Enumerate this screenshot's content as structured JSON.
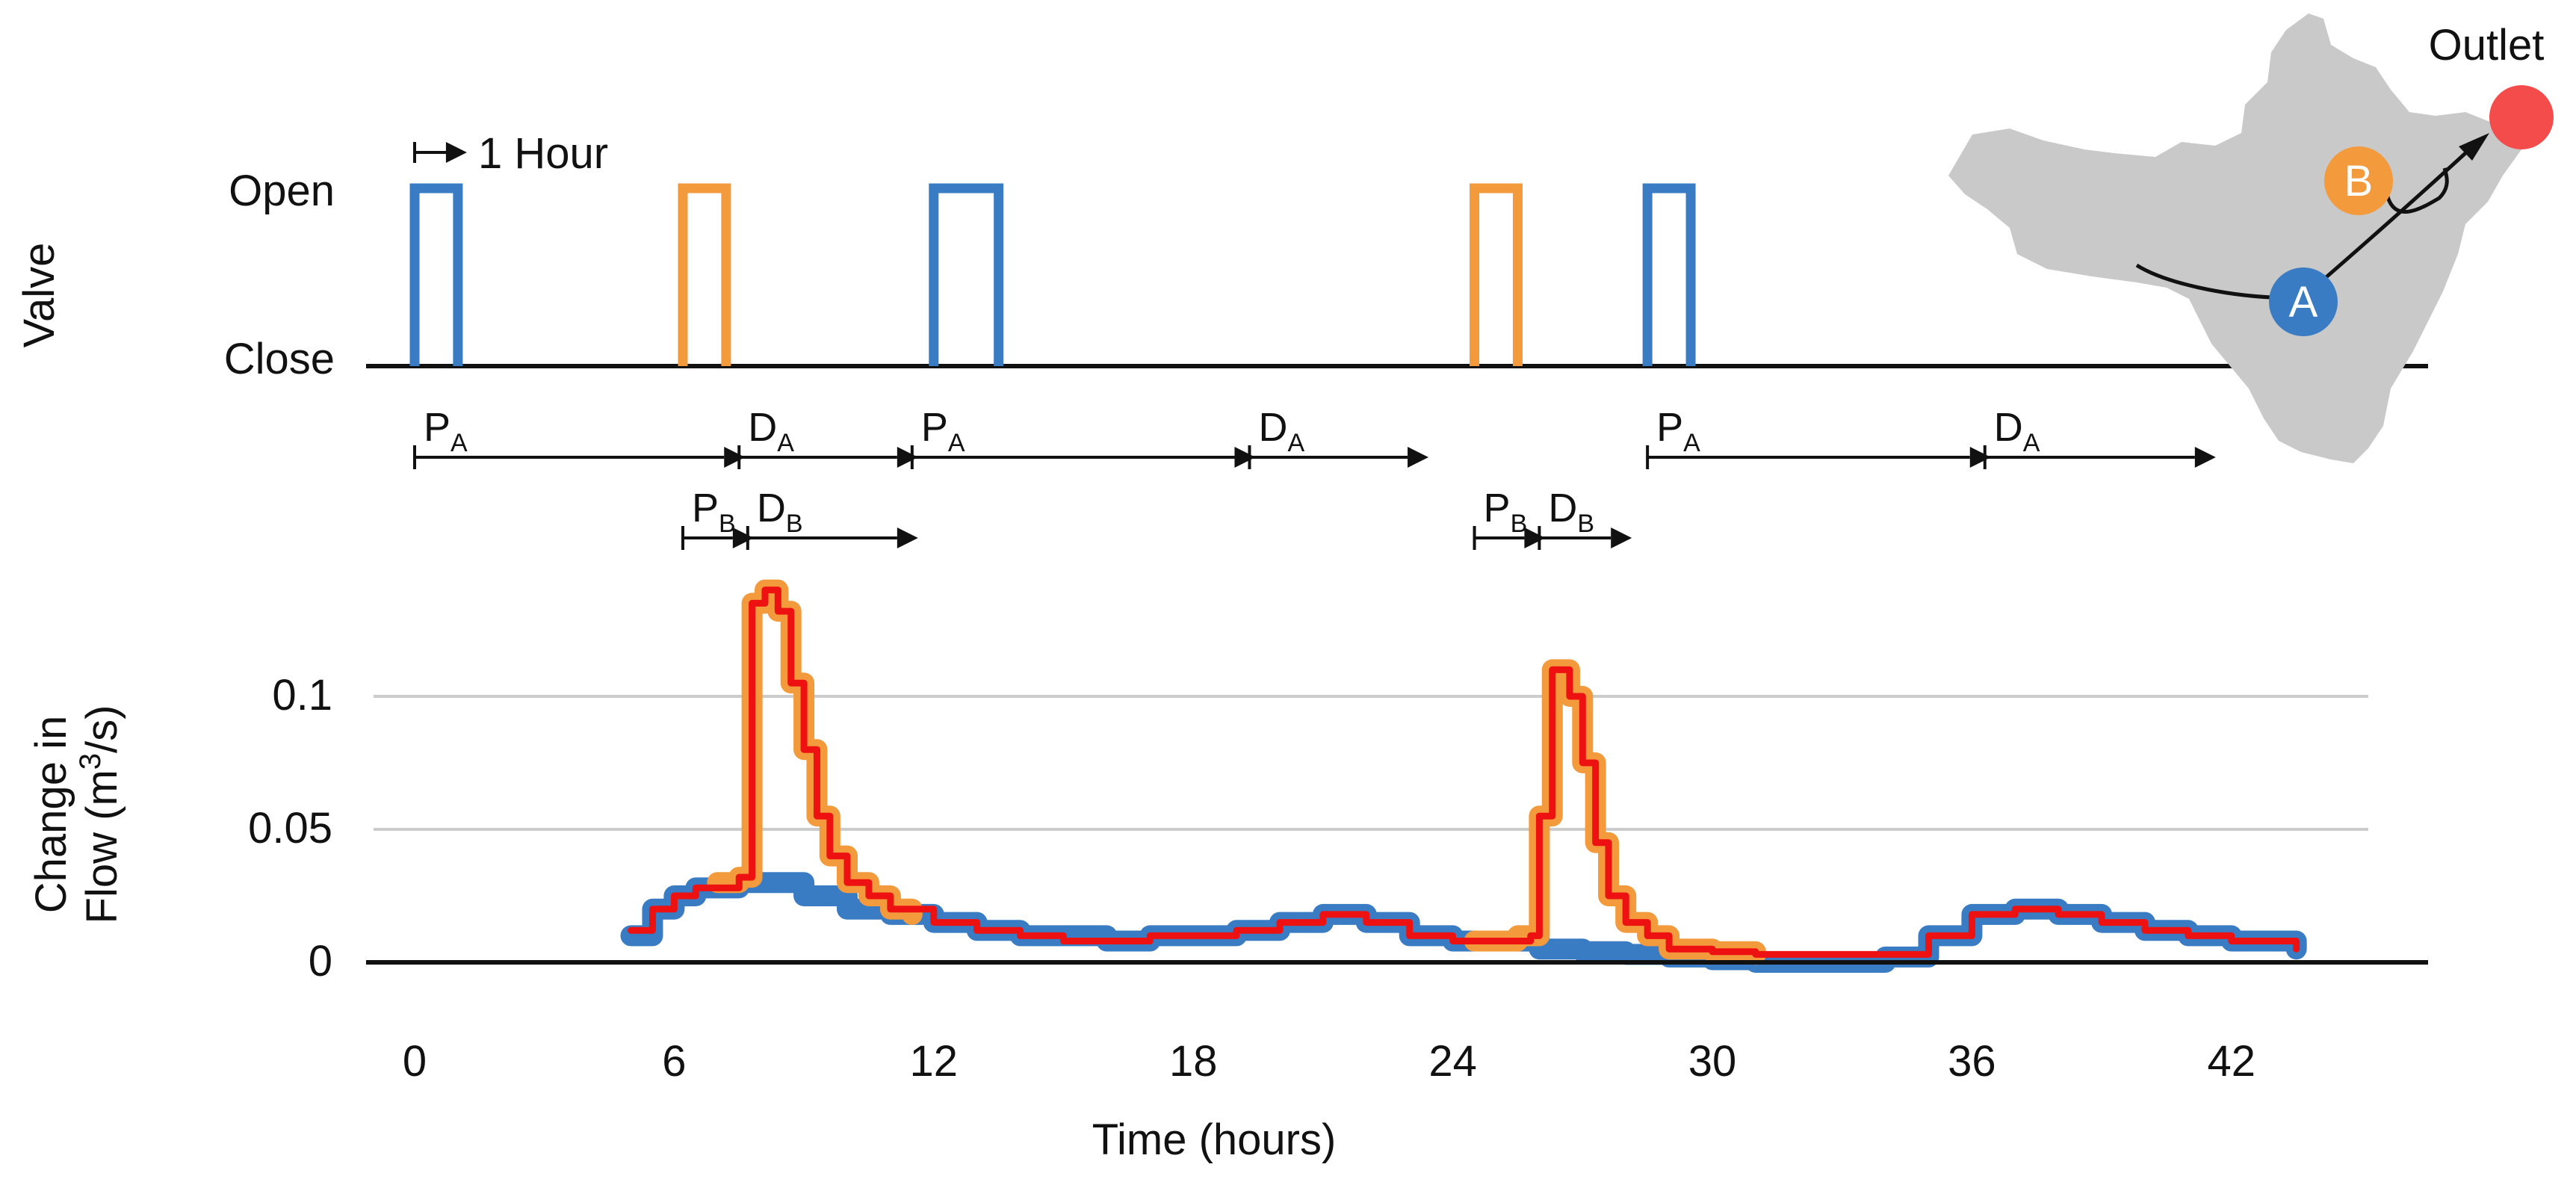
{
  "colors": {
    "valve_a": "#3a7cc3",
    "valve_b": "#f39a3c",
    "combined": "#ee1111",
    "outlet": "#f44b4b",
    "map": "#c9c9c9",
    "grid": "#cccccc",
    "axis": "#111111"
  },
  "valve_panel": {
    "ylabel": "Valve",
    "open_label": "Open",
    "close_label": "Close",
    "scale_label": "1 Hour"
  },
  "map": {
    "outlet_label": "Outlet",
    "point_a": "A",
    "point_b": "B"
  },
  "periods": {
    "p_letter": "P",
    "d_letter": "D",
    "a_sub": "A",
    "b_sub": "B"
  },
  "chart_data": {
    "type": "line",
    "xlabel": "Time (hours)",
    "ylabel_line1": "Change in",
    "ylabel_line2_prefix": "Flow  (m",
    "ylabel_line2_sup": "3",
    "ylabel_line2_suffix": "/s)",
    "xlim": [
      -0.5,
      47
    ],
    "ylim": [
      0,
      0.14
    ],
    "xticks": [
      0,
      6,
      12,
      18,
      24,
      30,
      36,
      42
    ],
    "xtick_labels": [
      "0",
      "6",
      "12",
      "18",
      "24",
      "30",
      "36",
      "42"
    ],
    "yticks": [
      0,
      0.05,
      0.1
    ],
    "ytick_labels": [
      "0",
      "0.05",
      "0.1"
    ],
    "valve_a_pulses": [
      [
        0,
        1
      ],
      [
        12,
        13.5
      ],
      [
        28.5,
        29.5
      ]
    ],
    "valve_b_pulses": [
      [
        6.2,
        7.2
      ],
      [
        24.5,
        25.5
      ]
    ],
    "period_arrows_row1": [
      {
        "kind": "P",
        "site": "A",
        "start": 0,
        "end": 7.5
      },
      {
        "kind": "D",
        "site": "A",
        "start": 7.5,
        "end": 11.5
      },
      {
        "kind": "P",
        "site": "A",
        "start": 11.5,
        "end": 19.3
      },
      {
        "kind": "D",
        "site": "A",
        "start": 19.3,
        "end": 23.3
      },
      {
        "kind": "P",
        "site": "A",
        "start": 28.5,
        "end": 36.3
      },
      {
        "kind": "D",
        "site": "A",
        "start": 36.3,
        "end": 41.5
      }
    ],
    "period_arrows_row2": [
      {
        "kind": "P",
        "site": "B",
        "start": 6.2,
        "end": 7.7
      },
      {
        "kind": "D",
        "site": "B",
        "start": 7.7,
        "end": 11.5
      },
      {
        "kind": "P",
        "site": "B",
        "start": 24.5,
        "end": 26.0
      },
      {
        "kind": "D",
        "site": "B",
        "start": 26.0,
        "end": 28.0
      }
    ],
    "series": [
      {
        "color": "#3a7cc3",
        "x": [
          5,
          5.5,
          6,
          6.5,
          7,
          7.5,
          8,
          9,
          10,
          11,
          12,
          13,
          14,
          15,
          16,
          17,
          18,
          19,
          20,
          21,
          22,
          23,
          24,
          25,
          26,
          27,
          28,
          29,
          30,
          31,
          32,
          33,
          34,
          35,
          36,
          37,
          38,
          39,
          40,
          41,
          42,
          43.5
        ],
        "y": [
          0.01,
          0.02,
          0.025,
          0.028,
          0.028,
          0.03,
          0.03,
          0.025,
          0.02,
          0.018,
          0.015,
          0.012,
          0.01,
          0.01,
          0.008,
          0.01,
          0.01,
          0.012,
          0.015,
          0.018,
          0.015,
          0.01,
          0.008,
          0.008,
          0.005,
          0.004,
          0.003,
          0.002,
          0.001,
          0.0,
          0.0,
          0.0,
          0.002,
          0.01,
          0.018,
          0.02,
          0.018,
          0.015,
          0.012,
          0.01,
          0.008,
          0.005
        ]
      },
      {
        "color": "#f39a3c",
        "x": [
          7.0,
          7.5,
          7.8,
          8.1,
          8.4,
          8.7,
          9.0,
          9.3,
          9.6,
          10,
          10.5,
          11,
          11.5,
          24.5,
          25.5,
          26.0,
          26.3,
          26.7,
          27.0,
          27.3,
          27.6,
          28.0,
          28.5,
          29,
          30,
          31
        ],
        "y": [
          0.03,
          0.032,
          0.135,
          0.14,
          0.132,
          0.105,
          0.08,
          0.055,
          0.04,
          0.03,
          0.025,
          0.02,
          0.018,
          0.008,
          0.01,
          0.055,
          0.11,
          0.1,
          0.075,
          0.045,
          0.025,
          0.015,
          0.01,
          0.005,
          0.004,
          0.003
        ]
      },
      {
        "color": "#ee1111",
        "x": [
          5,
          5.5,
          6,
          6.5,
          7,
          7.5,
          7.8,
          8.1,
          8.4,
          8.7,
          9.0,
          9.3,
          9.6,
          10,
          10.5,
          11,
          12,
          13,
          14,
          15,
          16,
          17,
          18,
          19,
          20,
          21,
          22,
          23,
          24,
          25,
          25.8,
          26.0,
          26.3,
          26.7,
          27.0,
          27.3,
          27.6,
          28.0,
          28.5,
          29,
          30,
          31,
          32,
          33,
          34,
          35,
          36,
          37,
          38,
          39,
          40,
          41,
          42,
          43.5
        ],
        "y": [
          0.012,
          0.02,
          0.025,
          0.028,
          0.028,
          0.032,
          0.135,
          0.14,
          0.132,
          0.105,
          0.08,
          0.055,
          0.04,
          0.03,
          0.025,
          0.02,
          0.015,
          0.012,
          0.01,
          0.008,
          0.008,
          0.01,
          0.01,
          0.012,
          0.015,
          0.018,
          0.015,
          0.01,
          0.008,
          0.008,
          0.01,
          0.055,
          0.11,
          0.1,
          0.075,
          0.045,
          0.025,
          0.015,
          0.01,
          0.005,
          0.004,
          0.003,
          0.003,
          0.003,
          0.003,
          0.01,
          0.018,
          0.02,
          0.018,
          0.015,
          0.012,
          0.01,
          0.008,
          0.005
        ]
      }
    ]
  }
}
